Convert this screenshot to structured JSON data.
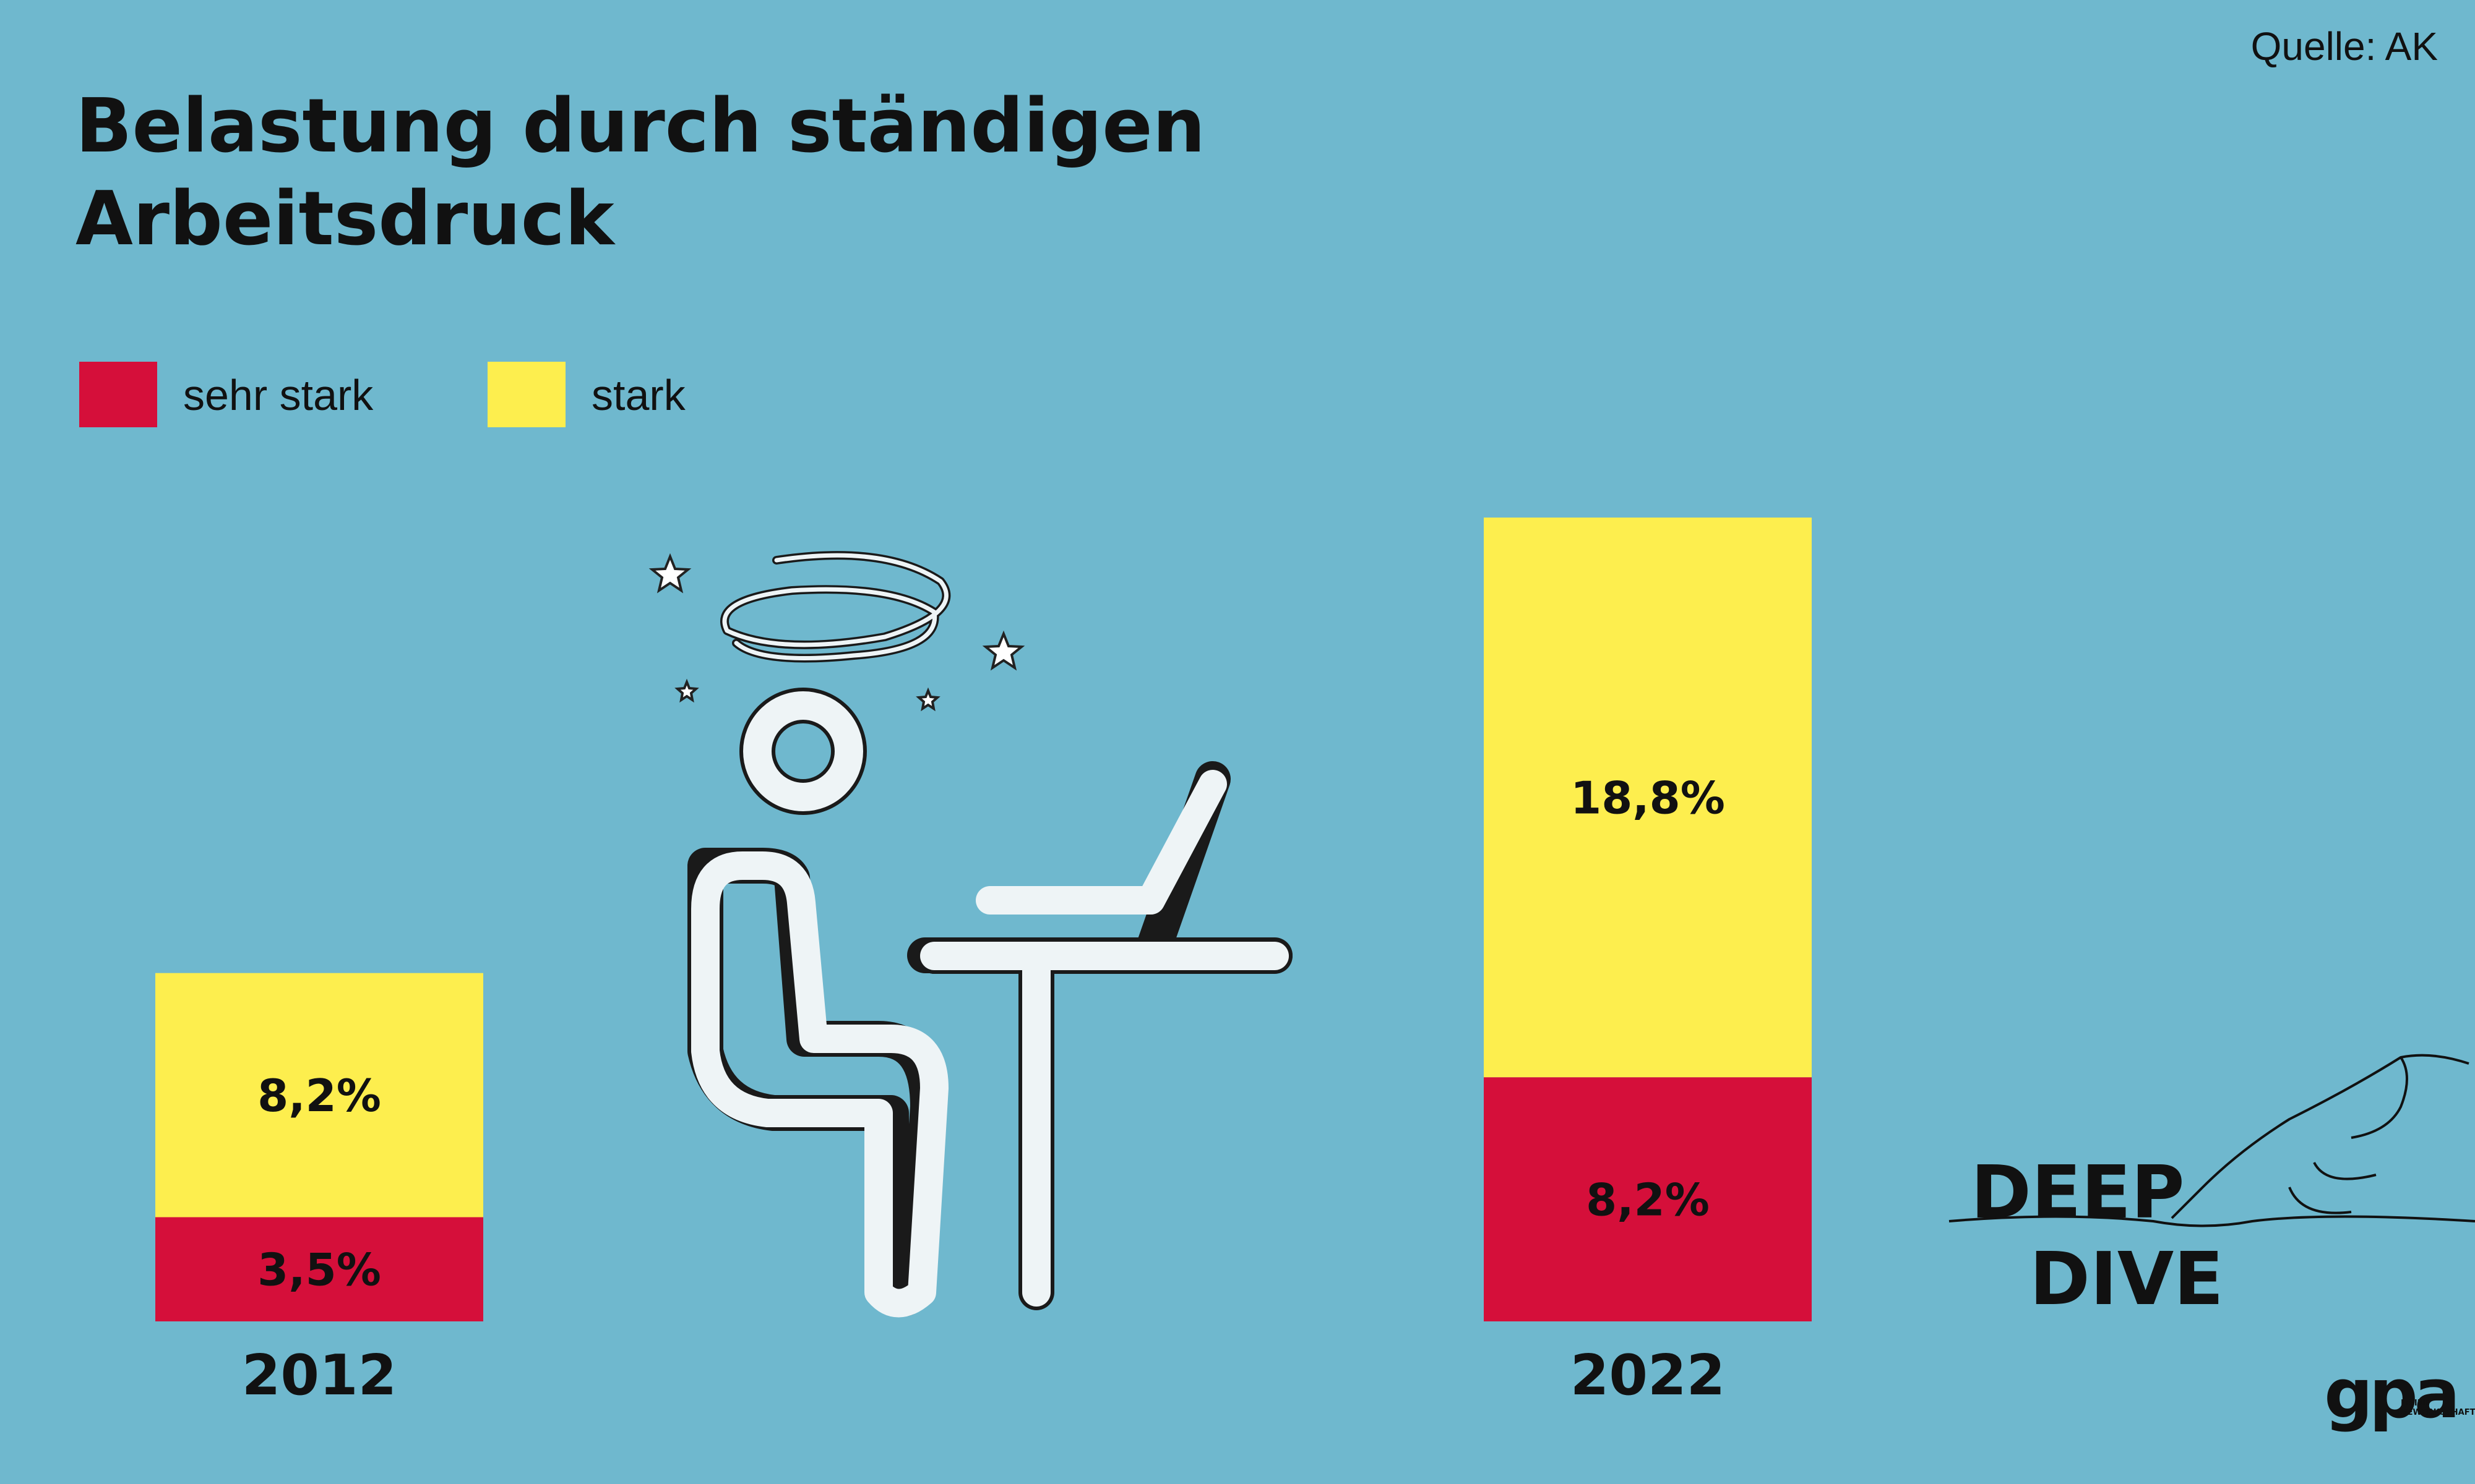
{
  "source": "Quelle: AK",
  "title": "Belastung durch ständigen Arbeitsdruck",
  "legend": [
    {
      "label": "sehr stark",
      "color": "#d50f3a"
    },
    {
      "label": "stark",
      "color": "#fdee4e"
    }
  ],
  "illustration": {
    "icon": "stressed-person-at-laptop-icon"
  },
  "branding": {
    "deep_dive_line1": "DEEP",
    "deep_dive_line2": "DIVE",
    "logo": "gpa",
    "logo_sub": "MEINE GEWERKSCHAFT"
  },
  "colors": {
    "background": "#6fb8ce",
    "sehr_stark": "#d50f3a",
    "stark": "#fdee4e"
  },
  "chart_data": {
    "type": "bar",
    "stacked": true,
    "categories": [
      "2012",
      "2022"
    ],
    "series": [
      {
        "name": "sehr stark",
        "values": [
          3.5,
          8.2
        ],
        "labels": [
          "3,5%",
          "8,2%"
        ]
      },
      {
        "name": "stark",
        "values": [
          8.2,
          18.8
        ],
        "labels": [
          "8,2%",
          "18,8%"
        ]
      }
    ],
    "title": "Belastung durch ständigen Arbeitsdruck",
    "xlabel": "",
    "ylabel": "",
    "ylim": [
      0,
      27
    ],
    "grid": false,
    "legend_position": "top-left"
  }
}
